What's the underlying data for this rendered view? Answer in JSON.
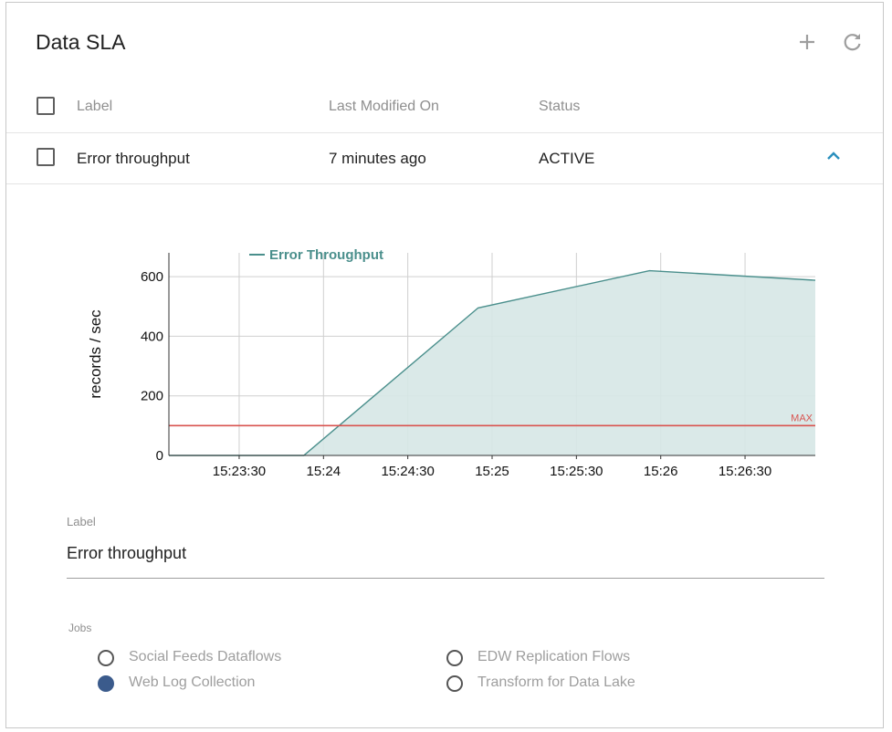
{
  "panel": {
    "title": "Data SLA"
  },
  "icons": {
    "add": "plus-icon",
    "refresh": "refresh-icon",
    "expand": "chevron-up-icon"
  },
  "table": {
    "headers": {
      "label": "Label",
      "modified": "Last Modified On",
      "status": "Status"
    },
    "rows": [
      {
        "label": "Error throughput",
        "modified": "7 minutes ago",
        "status": "ACTIVE",
        "checked": false,
        "expanded": true
      }
    ]
  },
  "chart_data": {
    "type": "area",
    "legend": "Error Throughput",
    "legend_placement": "top-left",
    "ylabel": "records / sec",
    "y_ticks": [
      0,
      200,
      400,
      600
    ],
    "ylim": [
      0,
      680
    ],
    "x_ticks": [
      "15:23:30",
      "15:24",
      "15:24:30",
      "15:25",
      "15:25:30",
      "15:26",
      "15:26:30"
    ],
    "xlim": [
      "15:23:05",
      "15:26:55"
    ],
    "series": [
      {
        "name": "Error Throughput",
        "color": "#4a8f8c",
        "points": [
          {
            "x": "15:23:05",
            "y": 0
          },
          {
            "x": "15:23:53",
            "y": 0
          },
          {
            "x": "15:24:55",
            "y": 495
          },
          {
            "x": "15:25:56",
            "y": 620
          },
          {
            "x": "15:26:55",
            "y": 588
          }
        ]
      }
    ],
    "threshold": {
      "label": "MAX",
      "value": 100,
      "color": "#d9534f"
    },
    "grid": true
  },
  "form": {
    "label_caption": "Label",
    "label_value": "Error throughput"
  },
  "jobs": {
    "caption": "Jobs",
    "items": [
      {
        "label": "Social Feeds Dataflows",
        "selected": false
      },
      {
        "label": "Web Log Collection",
        "selected": true
      },
      {
        "label": "EDW Replication Flows",
        "selected": false
      },
      {
        "label": "Transform for Data Lake",
        "selected": false
      }
    ]
  },
  "colors": {
    "accent": "#2a8fbd",
    "series": "#4a8f8c",
    "fill": "#d6e7e6",
    "threshold": "#d9534f",
    "radio_selected": "#3b5b8c"
  }
}
